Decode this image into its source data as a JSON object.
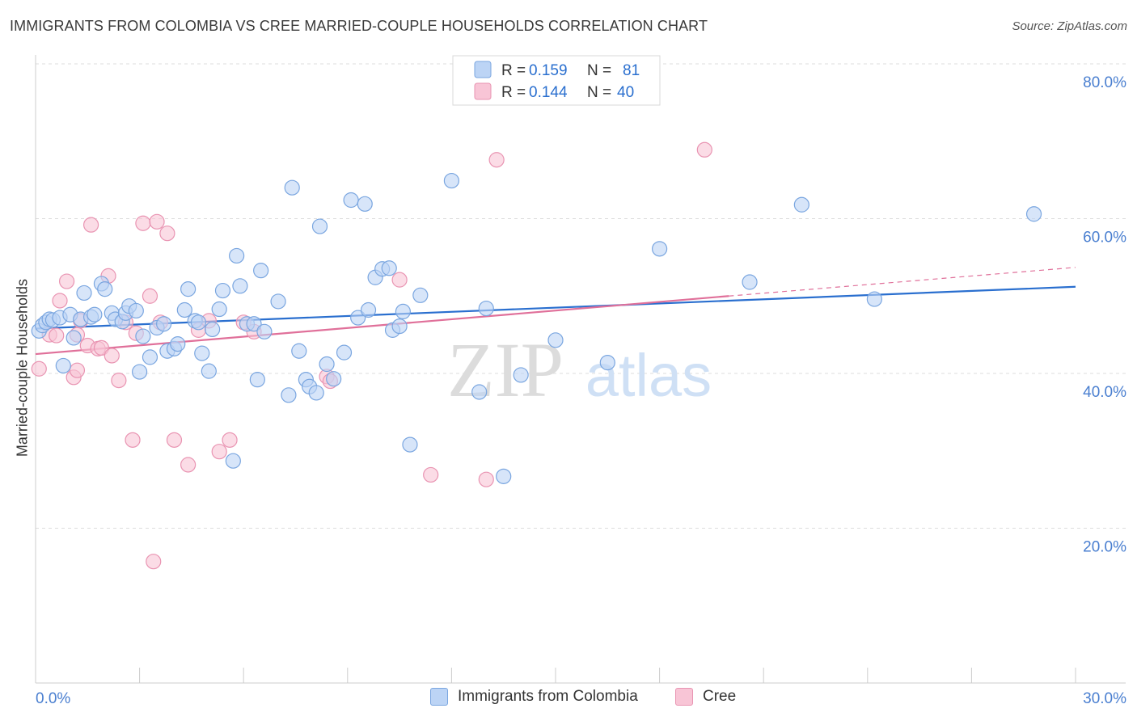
{
  "header": {
    "title": "IMMIGRANTS FROM COLOMBIA VS CREE MARRIED-COUPLE HOUSEHOLDS CORRELATION CHART",
    "source": "Source: ZipAtlas.com"
  },
  "watermark": {
    "zip": "ZIP",
    "atlas": "atlas"
  },
  "colors": {
    "blue_fill": "#bcd4f5",
    "blue_stroke": "#7aa6e0",
    "blue_line": "#2a6fcf",
    "pink_fill": "#f8c5d6",
    "pink_stroke": "#e994b2",
    "pink_line": "#e0709a",
    "tick_label": "#4a7fd0",
    "grid": "#dddddd"
  },
  "legend": {
    "rows": [
      {
        "r_label": "R =",
        "r_value": "0.159",
        "n_label": "N =",
        "n_value": "81"
      },
      {
        "r_label": "R =",
        "r_value": "0.144",
        "n_label": "N =",
        "n_value": "40"
      }
    ]
  },
  "bottom_legend": {
    "items": [
      {
        "label": "Immigrants from Colombia"
      },
      {
        "label": "Cree"
      }
    ]
  },
  "chart_data": {
    "type": "scatter",
    "title": "IMMIGRANTS FROM COLOMBIA VS CREE MARRIED-COUPLE HOUSEHOLDS CORRELATION CHART",
    "xlabel": "",
    "ylabel": "Married-couple Households",
    "xlim": [
      0,
      30
    ],
    "ylim": [
      0,
      80
    ],
    "x_tick_labels": [
      "0.0%",
      "30.0%"
    ],
    "y_ticks": [
      20,
      40,
      60,
      80
    ],
    "y_tick_labels": [
      "20.0%",
      "40.0%",
      "60.0%",
      "80.0%"
    ],
    "grid": true,
    "legend_position": "top-center",
    "series": [
      {
        "name": "Immigrants from Colombia",
        "r": 0.159,
        "n": 81,
        "trend": {
          "x": [
            0,
            30
          ],
          "y": [
            45.8,
            51.2
          ]
        },
        "points": [
          [
            0.1,
            45.5
          ],
          [
            0.2,
            46.2
          ],
          [
            0.3,
            46.6
          ],
          [
            0.4,
            47.0
          ],
          [
            0.5,
            46.9
          ],
          [
            0.7,
            47.2
          ],
          [
            0.8,
            41.0
          ],
          [
            1.0,
            47.6
          ],
          [
            1.1,
            44.6
          ],
          [
            1.3,
            47.0
          ],
          [
            1.4,
            50.4
          ],
          [
            1.6,
            47.3
          ],
          [
            1.7,
            47.6
          ],
          [
            1.9,
            51.6
          ],
          [
            2.0,
            50.9
          ],
          [
            2.2,
            47.8
          ],
          [
            2.3,
            47.0
          ],
          [
            2.5,
            46.7
          ],
          [
            2.6,
            47.8
          ],
          [
            2.7,
            48.7
          ],
          [
            2.9,
            48.1
          ],
          [
            3.0,
            40.2
          ],
          [
            3.1,
            44.8
          ],
          [
            3.3,
            42.1
          ],
          [
            3.5,
            45.9
          ],
          [
            3.7,
            46.4
          ],
          [
            3.8,
            42.9
          ],
          [
            4.0,
            43.2
          ],
          [
            4.1,
            43.8
          ],
          [
            4.3,
            48.2
          ],
          [
            4.4,
            50.9
          ],
          [
            4.6,
            46.8
          ],
          [
            4.7,
            46.6
          ],
          [
            4.8,
            42.6
          ],
          [
            5.0,
            40.3
          ],
          [
            5.1,
            45.7
          ],
          [
            5.3,
            48.3
          ],
          [
            5.4,
            50.7
          ],
          [
            5.7,
            28.7
          ],
          [
            5.8,
            55.2
          ],
          [
            5.9,
            51.3
          ],
          [
            6.1,
            46.4
          ],
          [
            6.3,
            46.4
          ],
          [
            6.4,
            39.2
          ],
          [
            6.5,
            53.3
          ],
          [
            6.6,
            45.4
          ],
          [
            7.0,
            49.3
          ],
          [
            7.3,
            37.2
          ],
          [
            7.4,
            64.0
          ],
          [
            7.6,
            42.9
          ],
          [
            7.8,
            39.2
          ],
          [
            7.9,
            38.3
          ],
          [
            8.1,
            37.5
          ],
          [
            8.2,
            59.0
          ],
          [
            8.4,
            41.2
          ],
          [
            8.6,
            39.3
          ],
          [
            8.9,
            42.7
          ],
          [
            9.1,
            62.4
          ],
          [
            9.3,
            47.2
          ],
          [
            9.5,
            61.9
          ],
          [
            9.6,
            48.2
          ],
          [
            9.8,
            52.4
          ],
          [
            10.0,
            53.5
          ],
          [
            10.2,
            53.6
          ],
          [
            10.3,
            45.6
          ],
          [
            10.5,
            46.1
          ],
          [
            10.6,
            48.0
          ],
          [
            10.8,
            30.8
          ],
          [
            11.1,
            50.1
          ],
          [
            12.0,
            64.9
          ],
          [
            12.8,
            37.6
          ],
          [
            13.0,
            48.4
          ],
          [
            13.5,
            26.7
          ],
          [
            14.0,
            39.8
          ],
          [
            15.0,
            44.3
          ],
          [
            16.5,
            41.4
          ],
          [
            18.0,
            56.1
          ],
          [
            20.6,
            51.8
          ],
          [
            22.1,
            61.8
          ],
          [
            24.2,
            49.6
          ],
          [
            28.8,
            60.6
          ]
        ]
      },
      {
        "name": "Cree",
        "r": 0.144,
        "n": 40,
        "trend": {
          "x": [
            0,
            20
          ],
          "y": [
            42.5,
            50.0
          ]
        },
        "trend_dashed": {
          "x": [
            20,
            30
          ],
          "y": [
            50.0,
            53.7
          ]
        },
        "points": [
          [
            0.1,
            40.6
          ],
          [
            0.4,
            45.0
          ],
          [
            0.6,
            44.9
          ],
          [
            0.7,
            49.4
          ],
          [
            0.9,
            51.9
          ],
          [
            1.1,
            39.5
          ],
          [
            1.2,
            40.4
          ],
          [
            1.3,
            46.8
          ],
          [
            1.5,
            43.6
          ],
          [
            1.6,
            59.2
          ],
          [
            1.8,
            43.2
          ],
          [
            1.9,
            43.3
          ],
          [
            2.1,
            52.6
          ],
          [
            2.2,
            42.3
          ],
          [
            2.4,
            39.1
          ],
          [
            2.6,
            46.6
          ],
          [
            2.8,
            31.4
          ],
          [
            2.9,
            45.2
          ],
          [
            3.1,
            59.4
          ],
          [
            3.3,
            50.0
          ],
          [
            3.5,
            59.6
          ],
          [
            3.6,
            46.6
          ],
          [
            3.8,
            58.1
          ],
          [
            4.0,
            31.4
          ],
          [
            4.4,
            28.2
          ],
          [
            4.7,
            45.6
          ],
          [
            5.0,
            46.8
          ],
          [
            5.3,
            29.9
          ],
          [
            5.6,
            31.4
          ],
          [
            6.0,
            46.6
          ],
          [
            6.3,
            45.4
          ],
          [
            8.4,
            39.6
          ],
          [
            8.5,
            39.0
          ],
          [
            10.5,
            52.1
          ],
          [
            11.4,
            26.9
          ],
          [
            13.0,
            26.3
          ],
          [
            13.3,
            67.6
          ],
          [
            19.3,
            68.9
          ],
          [
            3.4,
            15.7
          ],
          [
            1.2,
            45.0
          ]
        ]
      }
    ]
  }
}
